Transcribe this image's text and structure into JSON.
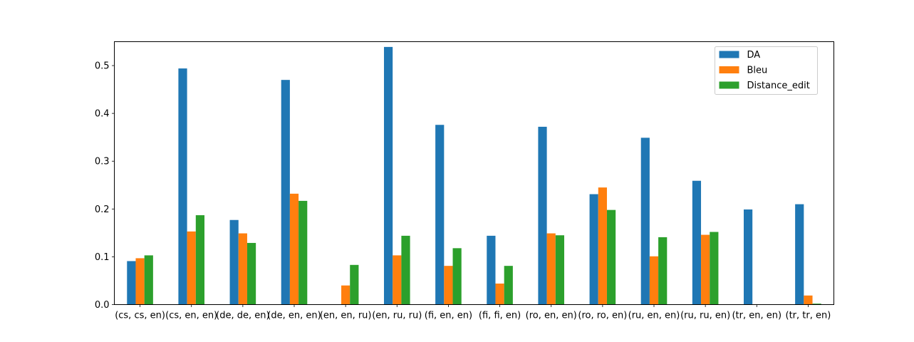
{
  "chart_data": {
    "type": "bar",
    "categories": [
      "(cs, cs, en)",
      "(cs, en, en)",
      "(de, de, en)",
      "(de, en, en)",
      "(en, en, ru)",
      "(en, ru, ru)",
      "(fi, en, en)",
      "(fi, fi, en)",
      "(ro, en, en)",
      "(ro, ro, en)",
      "(ru, en, en)",
      "(ru, ru, en)",
      "(tr, en, en)",
      "(tr, tr, en)"
    ],
    "series": [
      {
        "name": "DA",
        "color": "#1f77b4",
        "values": [
          0.091,
          0.494,
          0.177,
          0.47,
          0.0,
          0.539,
          0.376,
          0.144,
          0.372,
          0.231,
          0.349,
          0.259,
          0.199,
          0.21
        ]
      },
      {
        "name": "Bleu",
        "color": "#ff7f0e",
        "values": [
          0.097,
          0.153,
          0.149,
          0.232,
          0.04,
          0.103,
          0.081,
          0.044,
          0.149,
          0.245,
          0.101,
          0.146,
          0.0,
          0.019
        ]
      },
      {
        "name": "Distance_edit",
        "color": "#2ca02c",
        "values": [
          0.103,
          0.187,
          0.129,
          0.217,
          0.083,
          0.144,
          0.118,
          0.081,
          0.145,
          0.198,
          0.141,
          0.152,
          0.0,
          0.002
        ]
      }
    ],
    "title": "",
    "xlabel": "",
    "ylabel": "",
    "ylim": [
      0,
      0.55
    ],
    "yticks": [
      0.0,
      0.1,
      0.2,
      0.3,
      0.4,
      0.5
    ],
    "ytick_labels": [
      "0.0",
      "0.1",
      "0.2",
      "0.3",
      "0.4",
      "0.5"
    ],
    "grid": false,
    "legend_position": "top-right"
  }
}
